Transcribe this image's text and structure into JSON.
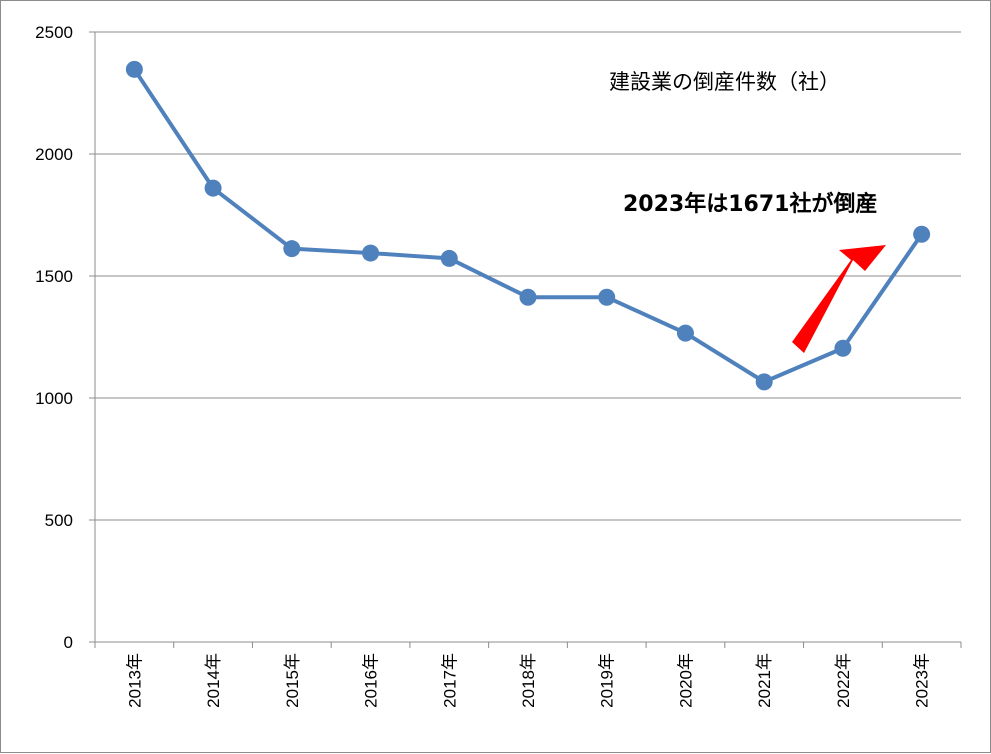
{
  "chart_data": {
    "type": "line",
    "title": "建設業の倒産件数（社）",
    "categories": [
      "2013年",
      "2014年",
      "2015年",
      "2016年",
      "2017年",
      "2018年",
      "2019年",
      "2020年",
      "2021年",
      "2022年",
      "2023年"
    ],
    "values": [
      2347,
      1860,
      1612,
      1594,
      1572,
      1413,
      1413,
      1266,
      1066,
      1204,
      1671
    ],
    "ylim": [
      0,
      2500
    ],
    "yticks": [
      "0",
      "500",
      "1000",
      "1500",
      "2000",
      "2500"
    ],
    "grid": true,
    "line_color": "#4f81bd",
    "annotation": {
      "text": "2023年は1671社が倒産",
      "arrow_color": "#ff0000"
    }
  }
}
